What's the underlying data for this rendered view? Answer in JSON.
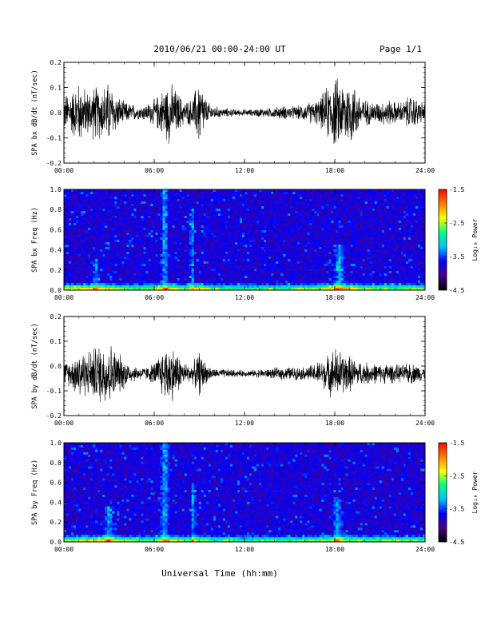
{
  "header": {
    "date_range": "2010/06/21  00:00-24:00 UT",
    "page": "Page 1/1"
  },
  "footer": {
    "xlabel": "Universal Time (hh:mm)"
  },
  "colors": {
    "line": "#000000",
    "colorbar": [
      "#000000",
      "#4b0082",
      "#0000ff",
      "#00bfff",
      "#00ff80",
      "#ffff00",
      "#ff8000",
      "#ff0000"
    ]
  },
  "chart_data": [
    {
      "type": "line",
      "ylabel": "SPA bx dB/dt (nT/sec)",
      "ylim": [
        -0.2,
        0.2
      ],
      "y_ticks": [
        "0.2",
        "0.1",
        "0.0",
        "-0.1",
        "-0.2"
      ],
      "x_ticks": [
        "00:00",
        "06:00",
        "12:00",
        "18:00",
        "24:00"
      ],
      "xlim_hours": [
        0,
        24
      ],
      "envelope": {
        "hours": [
          0,
          0.5,
          1,
          1.5,
          2,
          2.5,
          3,
          3.5,
          4,
          4.5,
          5,
          5.5,
          6,
          6.5,
          7,
          7.5,
          8,
          8.5,
          9,
          9.5,
          10,
          10.5,
          11,
          11.5,
          12,
          12.5,
          13,
          13.5,
          14,
          14.5,
          15,
          15.5,
          16,
          16.5,
          17,
          17.5,
          18,
          18.5,
          19,
          19.5,
          20,
          20.5,
          21,
          21.5,
          22,
          22.5,
          23,
          23.5,
          24
        ],
        "amplitude": [
          0.08,
          0.1,
          0.14,
          0.1,
          0.12,
          0.12,
          0.14,
          0.08,
          0.05,
          0.04,
          0.03,
          0.04,
          0.06,
          0.1,
          0.14,
          0.1,
          0.05,
          0.06,
          0.16,
          0.05,
          0.03,
          0.02,
          0.02,
          0.015,
          0.015,
          0.015,
          0.02,
          0.02,
          0.025,
          0.03,
          0.03,
          0.03,
          0.04,
          0.05,
          0.06,
          0.12,
          0.16,
          0.14,
          0.16,
          0.1,
          0.06,
          0.05,
          0.05,
          0.06,
          0.05,
          0.05,
          0.08,
          0.06,
          0.04
        ]
      }
    },
    {
      "type": "heatmap",
      "ylabel": "SPA bx Freq (Hz)",
      "ylim": [
        0.0,
        1.0
      ],
      "y_ticks": [
        "1.0",
        "0.8",
        "0.6",
        "0.4",
        "0.2",
        "0.0"
      ],
      "x_ticks": [
        "00:00",
        "06:00",
        "12:00",
        "18:00",
        "24:00"
      ],
      "xlim_hours": [
        0,
        24
      ],
      "colorbar": {
        "label": "Log₁₀ Power",
        "ticks": [
          "-1.5",
          "-2.5",
          "-3.5",
          "-4.5"
        ],
        "range": [
          -4.5,
          -1.5
        ]
      },
      "features": [
        {
          "hour": 6.7,
          "width": 0.3,
          "fmax": 1.0
        },
        {
          "hour": 8.5,
          "width": 0.2,
          "fmax": 0.8
        },
        {
          "hour": 18.3,
          "width": 0.5,
          "fmax": 0.45
        },
        {
          "hour": 2.1,
          "width": 0.3,
          "fmax": 0.3
        }
      ]
    },
    {
      "type": "line",
      "ylabel": "SPA by dB/dt (nT/sec)",
      "ylim": [
        -0.2,
        0.2
      ],
      "y_ticks": [
        "0.2",
        "0.1",
        "0.0",
        "-0.1",
        "-0.2"
      ],
      "x_ticks": [
        "00:00",
        "06:00",
        "12:00",
        "18:00",
        "24:00"
      ],
      "xlim_hours": [
        0,
        24
      ],
      "envelope": {
        "hours": [
          0,
          0.5,
          1,
          1.5,
          2,
          2.5,
          3,
          3.5,
          4,
          4.5,
          5,
          5.5,
          6,
          6.5,
          7,
          7.5,
          8,
          8.5,
          9,
          9.5,
          10,
          10.5,
          11,
          11.5,
          12,
          12.5,
          13,
          13.5,
          14,
          14.5,
          15,
          15.5,
          16,
          16.5,
          17,
          17.5,
          18,
          18.5,
          19,
          19.5,
          20,
          20.5,
          21,
          21.5,
          22,
          22.5,
          23,
          23.5,
          24
        ],
        "amplitude": [
          0.05,
          0.06,
          0.12,
          0.1,
          0.12,
          0.14,
          0.15,
          0.1,
          0.07,
          0.04,
          0.03,
          0.03,
          0.05,
          0.1,
          0.14,
          0.1,
          0.05,
          0.04,
          0.1,
          0.04,
          0.02,
          0.02,
          0.02,
          0.015,
          0.015,
          0.015,
          0.02,
          0.02,
          0.025,
          0.03,
          0.03,
          0.03,
          0.03,
          0.04,
          0.06,
          0.08,
          0.12,
          0.1,
          0.08,
          0.06,
          0.05,
          0.05,
          0.04,
          0.05,
          0.04,
          0.04,
          0.05,
          0.04,
          0.03
        ]
      }
    },
    {
      "type": "heatmap",
      "ylabel": "SPA by Freq (Hz)",
      "ylim": [
        0.0,
        1.0
      ],
      "y_ticks": [
        "1.0",
        "0.8",
        "0.6",
        "0.4",
        "0.2",
        "0.0"
      ],
      "x_ticks": [
        "00:00",
        "06:00",
        "12:00",
        "18:00",
        "24:00"
      ],
      "xlim_hours": [
        0,
        24
      ],
      "colorbar": {
        "label": "Log₁₀ Power",
        "ticks": [
          "-1.5",
          "-2.5",
          "-3.5",
          "-4.5"
        ],
        "range": [
          -4.5,
          -1.5
        ]
      },
      "features": [
        {
          "hour": 6.7,
          "width": 0.35,
          "fmax": 1.0
        },
        {
          "hour": 8.6,
          "width": 0.2,
          "fmax": 0.6
        },
        {
          "hour": 18.2,
          "width": 0.4,
          "fmax": 0.45
        },
        {
          "hour": 3.0,
          "width": 0.4,
          "fmax": 0.35
        }
      ]
    }
  ]
}
